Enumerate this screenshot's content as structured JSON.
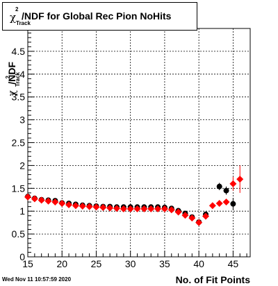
{
  "title": {
    "symbol": "χ",
    "superscript": "2",
    "subscript": "Track",
    "text": "/NDF for Global Rec Pion NoHits"
  },
  "footer": {
    "datestamp": "Wed Nov 11 10:57:59 2020"
  },
  "chart_data": {
    "type": "scatter",
    "xlabel": "No. of Fit Points",
    "ylabel": {
      "symbol": "χ",
      "superscript": "2",
      "subscript": "Track",
      "text": "/NDF"
    },
    "xlim": [
      15,
      47.5
    ],
    "ylim": [
      0,
      5
    ],
    "x_ticks": [
      15,
      20,
      25,
      30,
      35,
      40,
      45
    ],
    "y_ticks": [
      0,
      0.5,
      1,
      1.5,
      2,
      2.5,
      3,
      3.5,
      4,
      4.5
    ],
    "grid": true,
    "series": [
      {
        "marker": "circle",
        "color": "#000000",
        "points": [
          {
            "x": 15,
            "y": 1.32,
            "err": 0
          },
          {
            "x": 16,
            "y": 1.28,
            "err": 0
          },
          {
            "x": 17,
            "y": 1.25,
            "err": 0
          },
          {
            "x": 18,
            "y": 1.24,
            "err": 0
          },
          {
            "x": 19,
            "y": 1.23,
            "err": 0
          },
          {
            "x": 20,
            "y": 1.18,
            "err": 0
          },
          {
            "x": 21,
            "y": 1.17,
            "err": 0
          },
          {
            "x": 22,
            "y": 1.15,
            "err": 0
          },
          {
            "x": 23,
            "y": 1.13,
            "err": 0
          },
          {
            "x": 24,
            "y": 1.12,
            "err": 0
          },
          {
            "x": 25,
            "y": 1.11,
            "err": 0
          },
          {
            "x": 26,
            "y": 1.1,
            "err": 0
          },
          {
            "x": 27,
            "y": 1.1,
            "err": 0
          },
          {
            "x": 28,
            "y": 1.09,
            "err": 0
          },
          {
            "x": 29,
            "y": 1.09,
            "err": 0
          },
          {
            "x": 30,
            "y": 1.09,
            "err": 0
          },
          {
            "x": 31,
            "y": 1.09,
            "err": 0
          },
          {
            "x": 32,
            "y": 1.09,
            "err": 0
          },
          {
            "x": 33,
            "y": 1.09,
            "err": 0
          },
          {
            "x": 34,
            "y": 1.09,
            "err": 0
          },
          {
            "x": 35,
            "y": 1.08,
            "err": 0
          },
          {
            "x": 36,
            "y": 1.06,
            "err": 0
          },
          {
            "x": 37,
            "y": 1.01,
            "err": 0
          },
          {
            "x": 38,
            "y": 0.95,
            "err": 0
          },
          {
            "x": 39,
            "y": 0.87,
            "err": 0
          },
          {
            "x": 40,
            "y": 0.76,
            "err": 0
          },
          {
            "x": 41,
            "y": 0.93,
            "err": 0
          },
          {
            "x": 43,
            "y": 1.54,
            "err": 0.08
          },
          {
            "x": 44,
            "y": 1.45,
            "err": 0.09
          },
          {
            "x": 45,
            "y": 1.16,
            "err": 0.13
          }
        ]
      },
      {
        "marker": "diamond",
        "color": "#ff0000",
        "points": [
          {
            "x": 15,
            "y": 1.31,
            "err": 0
          },
          {
            "x": 16,
            "y": 1.27,
            "err": 0
          },
          {
            "x": 17,
            "y": 1.24,
            "err": 0
          },
          {
            "x": 18,
            "y": 1.22,
            "err": 0
          },
          {
            "x": 19,
            "y": 1.2,
            "err": 0
          },
          {
            "x": 20,
            "y": 1.17,
            "err": 0
          },
          {
            "x": 21,
            "y": 1.14,
            "err": 0
          },
          {
            "x": 22,
            "y": 1.12,
            "err": 0
          },
          {
            "x": 23,
            "y": 1.11,
            "err": 0
          },
          {
            "x": 24,
            "y": 1.1,
            "err": 0
          },
          {
            "x": 25,
            "y": 1.09,
            "err": 0
          },
          {
            "x": 26,
            "y": 1.08,
            "err": 0
          },
          {
            "x": 27,
            "y": 1.07,
            "err": 0
          },
          {
            "x": 28,
            "y": 1.06,
            "err": 0
          },
          {
            "x": 29,
            "y": 1.05,
            "err": 0
          },
          {
            "x": 30,
            "y": 1.05,
            "err": 0
          },
          {
            "x": 31,
            "y": 1.05,
            "err": 0
          },
          {
            "x": 32,
            "y": 1.05,
            "err": 0
          },
          {
            "x": 33,
            "y": 1.05,
            "err": 0
          },
          {
            "x": 34,
            "y": 1.05,
            "err": 0
          },
          {
            "x": 35,
            "y": 1.05,
            "err": 0
          },
          {
            "x": 36,
            "y": 1.03,
            "err": 0
          },
          {
            "x": 37,
            "y": 0.98,
            "err": 0
          },
          {
            "x": 38,
            "y": 0.91,
            "err": 0
          },
          {
            "x": 39,
            "y": 0.85,
            "err": 0
          },
          {
            "x": 40,
            "y": 0.75,
            "err": 0
          },
          {
            "x": 41,
            "y": 0.89,
            "err": 0
          },
          {
            "x": 42,
            "y": 1.12,
            "err": 0
          },
          {
            "x": 43,
            "y": 1.17,
            "err": 0
          },
          {
            "x": 44,
            "y": 1.2,
            "err": 0.06
          },
          {
            "x": 45,
            "y": 1.6,
            "err": 0.15
          },
          {
            "x": 46,
            "y": 1.7,
            "err": 0.3
          }
        ]
      }
    ]
  }
}
